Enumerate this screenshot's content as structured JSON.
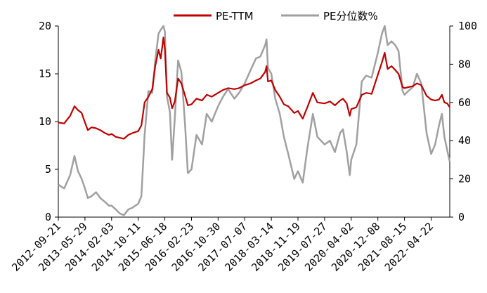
{
  "chart_data": {
    "type": "line",
    "title": "",
    "legend": {
      "placement": "top-center"
    },
    "grid": false,
    "x_ticks": [
      "2012-09-21",
      "2013-05-29",
      "2014-02-03",
      "2014-10-11",
      "2015-06-18",
      "2016-02-23",
      "2016-10-30",
      "2017-07-07",
      "2018-03-14",
      "2018-11-19",
      "2019-07-27",
      "2020-04-02",
      "2020-12-08",
      "2021-08-15",
      "2022-04-22"
    ],
    "x_range": [
      "2012-09-21",
      "2022-10-14"
    ],
    "y_left": {
      "ticks": [
        "0",
        "5",
        "10",
        "15",
        "20"
      ],
      "range": [
        0,
        20
      ]
    },
    "y_right": {
      "ticks": [
        "0",
        "20",
        "40",
        "60",
        "80",
        "100"
      ],
      "range": [
        0,
        100
      ]
    },
    "series": [
      {
        "name": "PE-TTM",
        "axis": "left",
        "color": "#c00000",
        "points": [
          [
            "2012-09-21",
            9.9
          ],
          [
            "2012-11-15",
            9.8
          ],
          [
            "2013-01-10",
            10.6
          ],
          [
            "2013-02-20",
            11.6
          ],
          [
            "2013-03-25",
            11.2
          ],
          [
            "2013-04-28",
            10.9
          ],
          [
            "2013-05-29",
            9.9
          ],
          [
            "2013-06-25",
            9.1
          ],
          [
            "2013-07-30",
            9.4
          ],
          [
            "2013-09-10",
            9.3
          ],
          [
            "2013-10-20",
            9.1
          ],
          [
            "2013-12-01",
            8.8
          ],
          [
            "2014-01-10",
            8.6
          ],
          [
            "2014-02-03",
            8.7
          ],
          [
            "2014-03-15",
            8.4
          ],
          [
            "2014-04-20",
            8.3
          ],
          [
            "2014-05-30",
            8.2
          ],
          [
            "2014-07-10",
            8.6
          ],
          [
            "2014-08-20",
            8.8
          ],
          [
            "2014-10-11",
            9.0
          ],
          [
            "2014-11-10",
            9.6
          ],
          [
            "2014-12-10",
            12.0
          ],
          [
            "2015-01-15",
            12.6
          ],
          [
            "2015-02-20",
            13.4
          ],
          [
            "2015-03-20",
            15.8
          ],
          [
            "2015-04-20",
            17.5
          ],
          [
            "2015-05-10",
            16.6
          ],
          [
            "2015-06-05",
            18.8
          ],
          [
            "2015-06-18",
            17.6
          ],
          [
            "2015-07-08",
            13.0
          ],
          [
            "2015-08-05",
            12.5
          ],
          [
            "2015-08-25",
            11.4
          ],
          [
            "2015-09-20",
            12.1
          ],
          [
            "2015-10-20",
            14.5
          ],
          [
            "2015-11-20",
            14.0
          ],
          [
            "2015-12-25",
            12.7
          ],
          [
            "2016-01-20",
            11.7
          ],
          [
            "2016-02-23",
            11.8
          ],
          [
            "2016-04-10",
            12.4
          ],
          [
            "2016-06-01",
            12.2
          ],
          [
            "2016-07-15",
            12.8
          ],
          [
            "2016-09-01",
            12.6
          ],
          [
            "2016-10-30",
            13.0
          ],
          [
            "2016-12-15",
            13.3
          ],
          [
            "2017-02-01",
            13.5
          ],
          [
            "2017-04-01",
            13.4
          ],
          [
            "2017-05-15",
            13.5
          ],
          [
            "2017-07-07",
            13.8
          ],
          [
            "2017-09-01",
            14.0
          ],
          [
            "2017-10-20",
            14.3
          ],
          [
            "2017-12-01",
            14.5
          ],
          [
            "2018-01-15",
            15.2
          ],
          [
            "2018-01-28",
            15.8
          ],
          [
            "2018-02-10",
            14.2
          ],
          [
            "2018-03-14",
            14.3
          ],
          [
            "2018-04-20",
            13.3
          ],
          [
            "2018-06-01",
            12.6
          ],
          [
            "2018-07-10",
            11.8
          ],
          [
            "2018-08-20",
            11.6
          ],
          [
            "2018-10-15",
            10.9
          ],
          [
            "2018-11-19",
            11.1
          ],
          [
            "2019-01-03",
            10.3
          ],
          [
            "2019-02-15",
            11.5
          ],
          [
            "2019-04-08",
            13.0
          ],
          [
            "2019-05-20",
            12.0
          ],
          [
            "2019-07-27",
            11.9
          ],
          [
            "2019-09-15",
            12.1
          ],
          [
            "2019-11-01",
            11.7
          ],
          [
            "2019-12-20",
            12.2
          ],
          [
            "2020-01-15",
            12.4
          ],
          [
            "2020-02-20",
            11.9
          ],
          [
            "2020-03-19",
            10.6
          ],
          [
            "2020-04-02",
            11.3
          ],
          [
            "2020-05-20",
            11.5
          ],
          [
            "2020-07-10",
            12.8
          ],
          [
            "2020-08-20",
            13.0
          ],
          [
            "2020-10-10",
            12.9
          ],
          [
            "2020-12-08",
            14.9
          ],
          [
            "2021-01-15",
            16.2
          ],
          [
            "2021-02-10",
            17.2
          ],
          [
            "2021-03-10",
            15.5
          ],
          [
            "2021-04-15",
            15.8
          ],
          [
            "2021-05-20",
            15.4
          ],
          [
            "2021-06-20",
            15.0
          ],
          [
            "2021-07-28",
            13.6
          ],
          [
            "2021-08-15",
            13.5
          ],
          [
            "2021-09-20",
            13.6
          ],
          [
            "2021-11-01",
            13.7
          ],
          [
            "2021-12-10",
            14.0
          ],
          [
            "2022-01-20",
            13.8
          ],
          [
            "2022-03-10",
            12.7
          ],
          [
            "2022-04-22",
            12.3
          ],
          [
            "2022-05-30",
            12.2
          ],
          [
            "2022-07-05",
            12.3
          ],
          [
            "2022-08-01",
            12.8
          ],
          [
            "2022-08-25",
            12.0
          ],
          [
            "2022-09-20",
            11.9
          ],
          [
            "2022-10-14",
            11.5
          ]
        ]
      },
      {
        "name": "PE分位数%",
        "axis": "right",
        "color": "#a0a0a0",
        "points": [
          [
            "2012-09-21",
            17
          ],
          [
            "2012-11-15",
            15
          ],
          [
            "2013-01-10",
            22
          ],
          [
            "2013-02-20",
            32
          ],
          [
            "2013-03-25",
            24
          ],
          [
            "2013-04-28",
            20
          ],
          [
            "2013-05-29",
            15
          ],
          [
            "2013-06-25",
            10
          ],
          [
            "2013-07-30",
            11
          ],
          [
            "2013-09-10",
            13
          ],
          [
            "2013-10-20",
            10
          ],
          [
            "2013-12-01",
            8
          ],
          [
            "2014-01-10",
            6
          ],
          [
            "2014-02-03",
            6
          ],
          [
            "2014-03-15",
            4
          ],
          [
            "2014-04-20",
            2
          ],
          [
            "2014-05-30",
            1
          ],
          [
            "2014-07-10",
            4
          ],
          [
            "2014-08-20",
            5
          ],
          [
            "2014-10-11",
            7
          ],
          [
            "2014-11-10",
            11
          ],
          [
            "2014-12-10",
            43
          ],
          [
            "2015-01-15",
            66
          ],
          [
            "2015-02-20",
            65
          ],
          [
            "2015-03-20",
            82
          ],
          [
            "2015-04-20",
            96
          ],
          [
            "2015-05-10",
            98
          ],
          [
            "2015-06-05",
            100
          ],
          [
            "2015-06-18",
            97
          ],
          [
            "2015-07-08",
            63
          ],
          [
            "2015-08-05",
            55
          ],
          [
            "2015-08-25",
            30
          ],
          [
            "2015-09-20",
            52
          ],
          [
            "2015-10-20",
            82
          ],
          [
            "2015-11-20",
            76
          ],
          [
            "2015-12-25",
            48
          ],
          [
            "2016-01-20",
            23
          ],
          [
            "2016-02-23",
            25
          ],
          [
            "2016-04-10",
            43
          ],
          [
            "2016-06-01",
            38
          ],
          [
            "2016-07-15",
            54
          ],
          [
            "2016-09-01",
            50
          ],
          [
            "2016-10-30",
            58
          ],
          [
            "2016-12-15",
            63
          ],
          [
            "2017-02-01",
            67
          ],
          [
            "2017-04-01",
            62
          ],
          [
            "2017-05-15",
            65
          ],
          [
            "2017-07-07",
            70
          ],
          [
            "2017-09-01",
            77
          ],
          [
            "2017-10-20",
            83
          ],
          [
            "2017-12-01",
            84
          ],
          [
            "2018-01-15",
            90
          ],
          [
            "2018-01-28",
            93
          ],
          [
            "2018-02-10",
            78
          ],
          [
            "2018-03-14",
            75
          ],
          [
            "2018-04-20",
            62
          ],
          [
            "2018-06-01",
            54
          ],
          [
            "2018-07-10",
            42
          ],
          [
            "2018-08-20",
            33
          ],
          [
            "2018-10-15",
            20
          ],
          [
            "2018-11-19",
            24
          ],
          [
            "2019-01-03",
            18
          ],
          [
            "2019-02-15",
            36
          ],
          [
            "2019-04-08",
            54
          ],
          [
            "2019-05-20",
            42
          ],
          [
            "2019-07-27",
            38
          ],
          [
            "2019-09-15",
            40
          ],
          [
            "2019-11-01",
            34
          ],
          [
            "2019-12-20",
            44
          ],
          [
            "2020-01-15",
            46
          ],
          [
            "2020-02-20",
            34
          ],
          [
            "2020-03-19",
            22
          ],
          [
            "2020-04-02",
            30
          ],
          [
            "2020-05-20",
            38
          ],
          [
            "2020-07-10",
            71
          ],
          [
            "2020-08-20",
            74
          ],
          [
            "2020-10-10",
            73
          ],
          [
            "2020-12-08",
            86
          ],
          [
            "2021-01-15",
            96
          ],
          [
            "2021-02-10",
            100
          ],
          [
            "2021-03-10",
            90
          ],
          [
            "2021-04-15",
            92
          ],
          [
            "2021-05-20",
            90
          ],
          [
            "2021-06-20",
            87
          ],
          [
            "2021-07-28",
            66
          ],
          [
            "2021-08-15",
            64
          ],
          [
            "2021-09-20",
            66
          ],
          [
            "2021-11-01",
            68
          ],
          [
            "2021-12-10",
            75
          ],
          [
            "2022-01-20",
            70
          ],
          [
            "2022-03-10",
            44
          ],
          [
            "2022-04-22",
            33
          ],
          [
            "2022-05-30",
            38
          ],
          [
            "2022-07-05",
            48
          ],
          [
            "2022-08-01",
            54
          ],
          [
            "2022-08-25",
            42
          ],
          [
            "2022-09-20",
            35
          ],
          [
            "2022-10-14",
            29
          ]
        ]
      }
    ]
  }
}
